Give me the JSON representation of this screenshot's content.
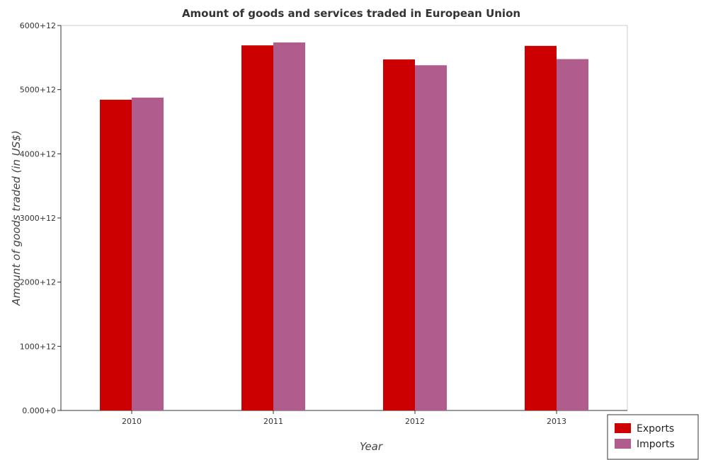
{
  "chart_data": {
    "type": "bar",
    "title": "Amount of goods and services traded in European Union",
    "xlabel": "Year",
    "ylabel": "Amount of goods traded (in US$)",
    "categories": [
      "2010",
      "2011",
      "2012",
      "2013"
    ],
    "series": [
      {
        "name": "Exports",
        "color": "#cc0000",
        "values": [
          4843000000000.0,
          5690000000000.0,
          5471000000000.0,
          5682000000000.0
        ]
      },
      {
        "name": "Imports",
        "color": "#b05c8c",
        "values": [
          4876000000000.0,
          5735000000000.0,
          5380000000000.0,
          5476000000000.0
        ]
      }
    ],
    "ylim": [
      0,
      6000000000000.0
    ],
    "yticks": [
      0,
      1000000000000.0,
      2000000000000.0,
      3000000000000.0,
      4000000000000.0,
      5000000000000.0,
      6000000000000.0
    ],
    "ytick_labels": [
      "0.000+0",
      "1000+12",
      "2000+12",
      "3000+12",
      "4000+12",
      "5000+12",
      "6000+12"
    ],
    "legend_position": "bottom-right",
    "grid": false
  }
}
